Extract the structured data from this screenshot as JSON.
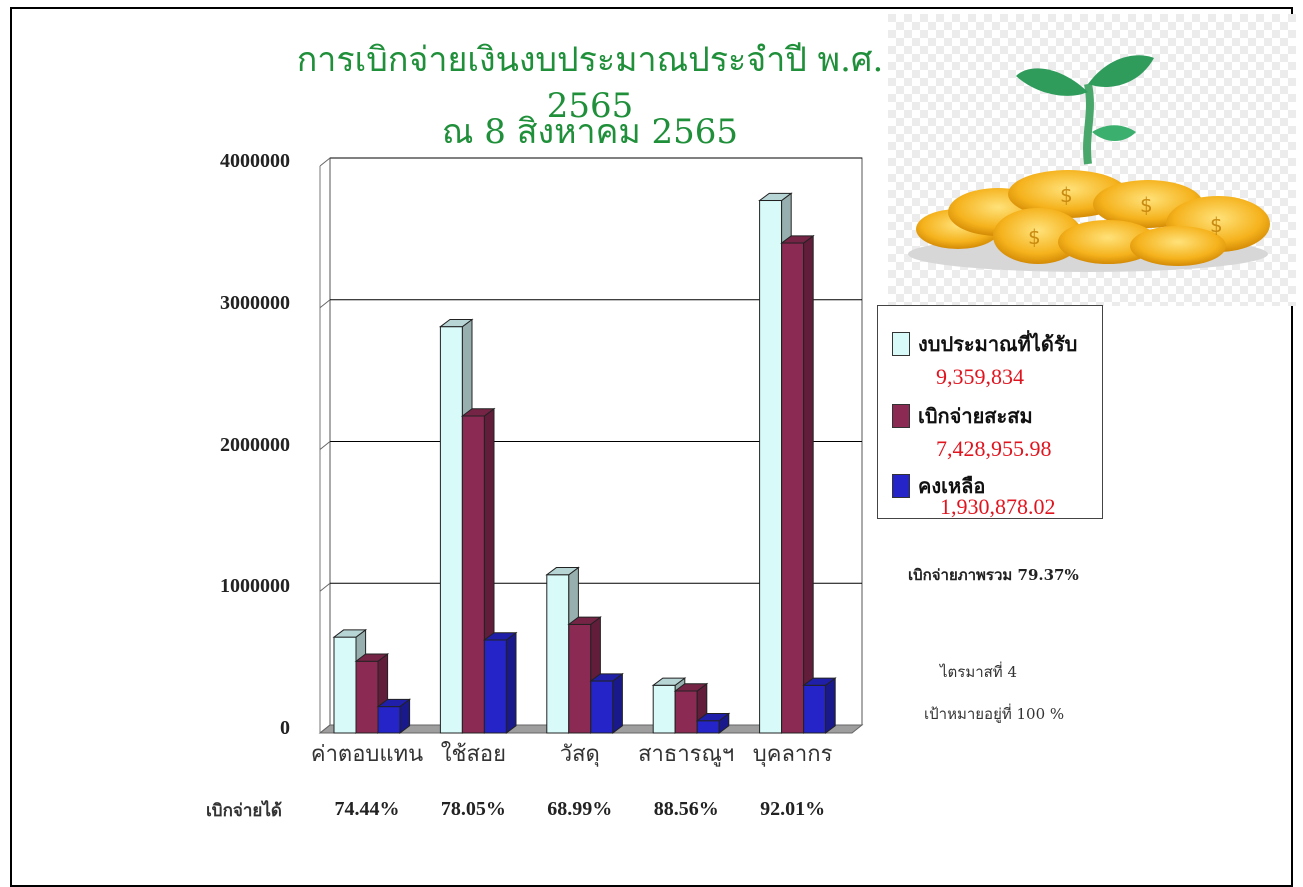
{
  "chart_data": {
    "type": "bar",
    "title": "การเบิกจ่ายเงินงบประมาณประจำปี พ.ศ. 2565",
    "subtitle": "ณ  8  สิงหาคม 2565",
    "categories": [
      "ค่าตอบแทน",
      "ใช้สอย",
      "วัสดุ",
      "สาธารณูฯ",
      "บุคลากร"
    ],
    "series": [
      {
        "name": "งบประมาณที่ได้รับ",
        "color": "#d8fbfa",
        "values": [
          620000,
          2810000,
          1060000,
          280000,
          3700000
        ]
      },
      {
        "name": "เบิกจ่ายสะสม",
        "color": "#8b2a52",
        "values": [
          450000,
          2180000,
          710000,
          240000,
          3400000
        ]
      },
      {
        "name": "คงเหลือ",
        "color": "#2424c8",
        "values": [
          130000,
          600000,
          310000,
          30000,
          280000
        ]
      }
    ],
    "ylim": [
      0,
      4000000
    ],
    "yticks": [
      "0",
      "1000000",
      "2000000",
      "3000000",
      "4000000"
    ],
    "grid": true,
    "legend_position": "right",
    "legend_values": [
      "9,359,834",
      "7,428,955.98",
      "1,930,878.02"
    ],
    "percent_row_label": "เบิกจ่ายได้",
    "percent_labels": [
      "74.44%",
      "78.05%",
      "68.99%",
      "88.56%",
      "92.01%"
    ]
  },
  "notes": {
    "overall": "เบิกจ่ายภาพรวม 79.37%",
    "quarter": "ไตรมาสที่ 4",
    "target": "เป้าหมายอยู่ที่ 100 %"
  },
  "decoration": {
    "icon": "money-plant-coins-icon"
  }
}
